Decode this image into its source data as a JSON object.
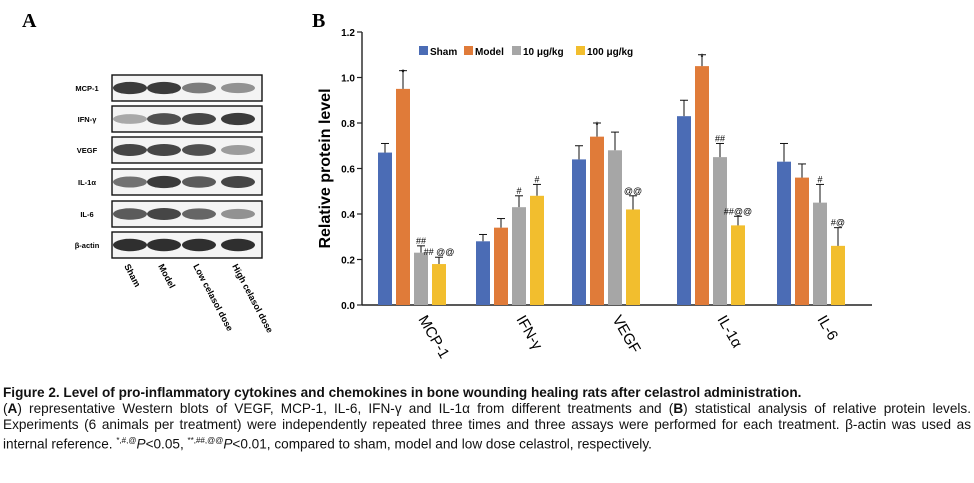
{
  "panels": {
    "a_label": "A",
    "b_label": "B"
  },
  "western_blot": {
    "proteins": [
      "MCP-1",
      "IFN-γ",
      "VEGF",
      "IL-1α",
      "IL-6",
      "β-actin"
    ],
    "lanes": [
      "Sham",
      "Model",
      "Low celasol dose",
      "High celasol dose"
    ]
  },
  "colors": {
    "sham": "#4b6cb5",
    "model": "#e07b39",
    "low": "#a6a6a6",
    "high": "#f2be2e"
  },
  "chart_data": {
    "type": "bar",
    "ylabel": "Relative protein level",
    "ylim": [
      0,
      1.2
    ],
    "yticks": [
      "0.0",
      "0.2",
      "0.4",
      "0.6",
      "0.8",
      "1.0",
      "1.2"
    ],
    "categories": [
      "MCP-1",
      "IFN-γ",
      "VEGF",
      "IL-1α",
      "IL-6"
    ],
    "legend_position": "top",
    "series": [
      {
        "name": "Sham",
        "values": [
          0.67,
          0.28,
          0.64,
          0.83,
          0.63
        ],
        "errors": [
          0.04,
          0.03,
          0.06,
          0.07,
          0.08
        ],
        "labels": [
          "",
          "",
          "",
          "",
          ""
        ]
      },
      {
        "name": "Model",
        "values": [
          0.95,
          0.34,
          0.74,
          1.05,
          0.56
        ],
        "errors": [
          0.08,
          0.04,
          0.06,
          0.05,
          0.06
        ],
        "labels": [
          "*",
          "",
          "*",
          "*",
          ""
        ]
      },
      {
        "name": "10 μg/kg",
        "values": [
          0.23,
          0.43,
          0.68,
          0.65,
          0.45
        ],
        "errors": [
          0.03,
          0.05,
          0.08,
          0.06,
          0.08
        ],
        "labels": [
          "##",
          "#",
          "",
          "##",
          "#"
        ]
      },
      {
        "name": "100 μg/kg",
        "values": [
          0.18,
          0.48,
          0.42,
          0.35,
          0.26
        ],
        "errors": [
          0.03,
          0.05,
          0.06,
          0.04,
          0.08
        ],
        "labels": [
          "## @@",
          "#",
          "@@",
          "##@@",
          "#@"
        ]
      }
    ]
  },
  "caption": {
    "title": "Figure 2. Level of pro-inflammatory cytokines and chemokines in bone wounding healing rats after celastrol administration.",
    "l_open": "(",
    "a": "A",
    "t1": ") representative Western blots of VEGF, MCP-1, IL-6, IFN-γ and IL-1α from different treatments and (",
    "b": "B",
    "t2": ") statistical analysis of relative protein levels. Experiments (6 animals per treatment) were independently repeated three times and three assays were performed for each treatment. β-actin was used as internal reference. ",
    "sup1": "*,#,@",
    "p1": "P",
    "t3": "<0.05, ",
    "sup2": "**,##,@@",
    "p2": "P",
    "t4": "<0.01, compared to sham, model and low dose celastrol, respectively."
  }
}
